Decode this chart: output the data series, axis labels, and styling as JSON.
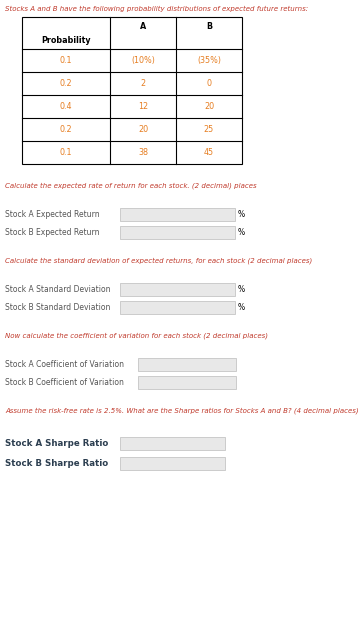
{
  "title": "Stocks A and B have the following probability distributions of expected future returns:",
  "title_color": "#c0392b",
  "table_rows": [
    [
      "0.1",
      "(10%)",
      "(35%)"
    ],
    [
      "0.2",
      "2",
      "0"
    ],
    [
      "0.4",
      "12",
      "20"
    ],
    [
      "0.2",
      "20",
      "25"
    ],
    [
      "0.1",
      "38",
      "45"
    ]
  ],
  "table_data_color": "#e67e22",
  "section1_label": "Calculate the expected rate of return for each stock. (2 decimal) places",
  "section1_color": "#c0392b",
  "row1_label": "Stock A Expected Return",
  "row2_label": "Stock B Expected Return",
  "percent_suffix": "%",
  "section2_label": "Calculate the standard deviation of expected returns, for each stock (2 decimal places)",
  "section2_color": "#c0392b",
  "row3_label": "Stock A Standard Deviation",
  "row4_label": "Stock B Standard Deviation",
  "section3_label": "Now calculate the coefficient of variation for each stock (2 decimal places)",
  "section3_color": "#c0392b",
  "row5_label": "Stock A Coefficient of Variation",
  "row6_label": "Stock B Coefficient of Variation",
  "section4_label": "Assume the risk-free rate is 2.5%. What are the Sharpe ratios for Stocks A and B? (4 decimal places)",
  "section4_color": "#c0392b",
  "row7_label": "Stock A Sharpe Ratio",
  "row8_label": "Stock B Sharpe Ratio",
  "label_color": "#555555",
  "sharpe_label_color": "#2c3e50",
  "box_fill": "#e8e8e8",
  "box_edge": "#bbbbbb",
  "bg_color": "#ffffff",
  "fs_title": 5.0,
  "fs_table_header": 5.8,
  "fs_table_data": 5.8,
  "fs_section": 5.0,
  "fs_label": 5.5,
  "fs_sharpe_label": 6.2
}
